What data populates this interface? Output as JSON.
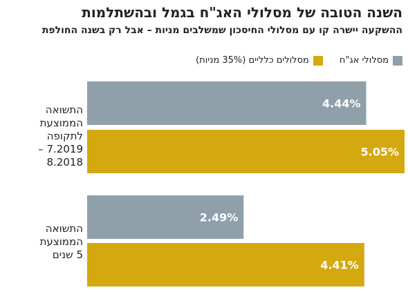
{
  "title": "השנה הטובה של מסלולי האג\"ח בגמל ובהשתלמות",
  "subtitle": "ההשקעה יישרה קו עם מסלולי החיסכון שמשלבים מניות – אבל רק בשנה החולפת",
  "colors": {
    "bond": "#8fa0ab",
    "general": "#d4a90f"
  },
  "chart_data": {
    "type": "bar",
    "orientation": "horizontal",
    "categories": [
      "התשואה הממוצעת לתקופה 7.2019 – 8.2018",
      "התשואה הממוצעת 5 שנים"
    ],
    "category_lines": [
      [
        "התשואה",
        "הממוצעת",
        "לתקופה",
        "7.2019 – 8.2018"
      ],
      [
        "התשואה",
        "הממוצעת",
        "5 שנים"
      ]
    ],
    "series": [
      {
        "name": "מסלולי אג\"ח",
        "values": [
          4.44,
          2.49
        ],
        "labels": [
          "4.44%",
          "2.49%"
        ]
      },
      {
        "name": "מסלולים כלליים (35% מניות)",
        "values": [
          5.05,
          4.41
        ],
        "labels": [
          "5.05%",
          "4.41%"
        ]
      }
    ],
    "xlim": [
      0,
      5.05
    ],
    "legend": "top-right"
  }
}
